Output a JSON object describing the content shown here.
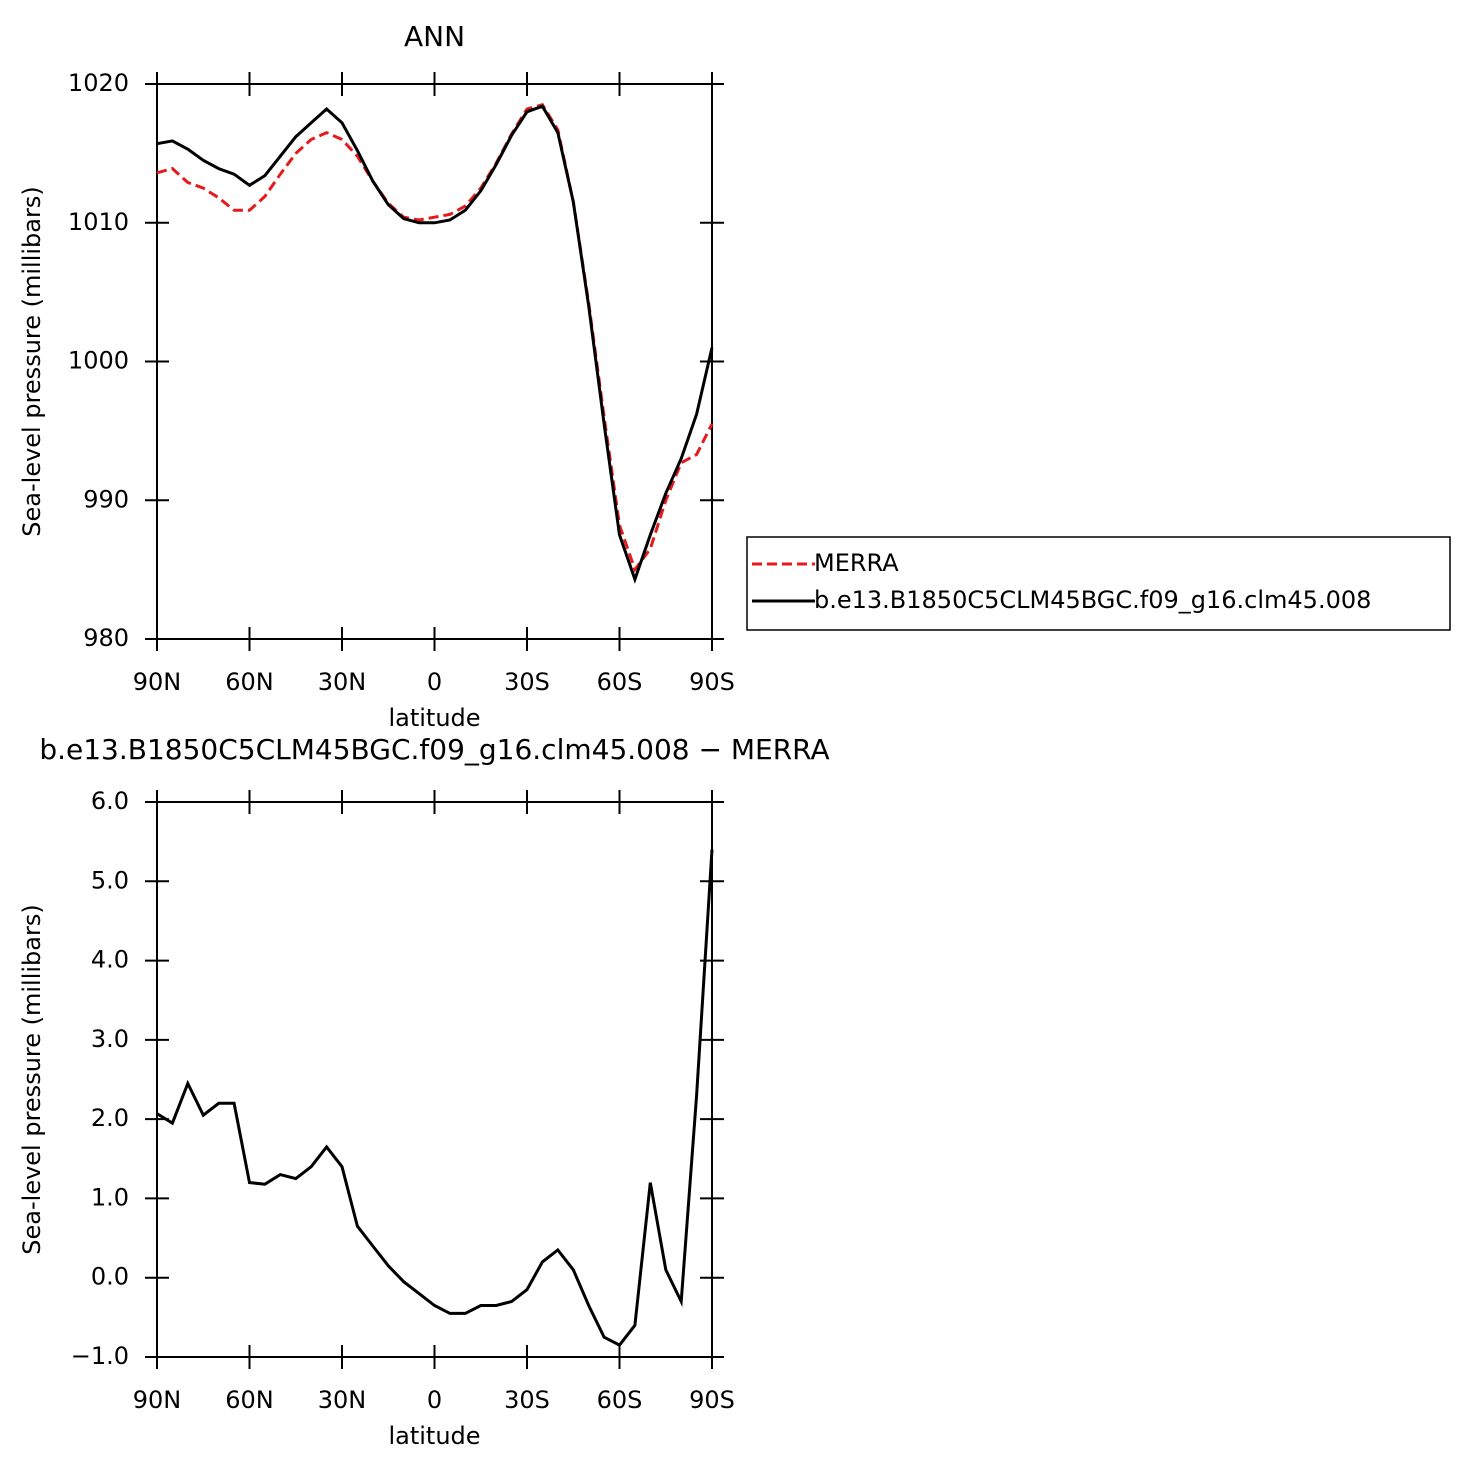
{
  "chart_data": [
    {
      "type": "line",
      "title": "ANN",
      "xlabel": "latitude",
      "ylabel": "Sea-level pressure (millibars)",
      "x": [
        90,
        85,
        80,
        75,
        70,
        65,
        60,
        55,
        50,
        45,
        40,
        35,
        30,
        25,
        20,
        15,
        10,
        5,
        0,
        -5,
        -10,
        -15,
        -20,
        -25,
        -30,
        -35,
        -40,
        -45,
        -50,
        -55,
        -60,
        -65,
        -70,
        -75,
        -80,
        -85,
        -90
      ],
      "series": [
        {
          "name": "MERRA",
          "color": "#e41a1c",
          "dashed": true,
          "values": [
            1013.6,
            1013.9,
            1012.9,
            1012.5,
            1011.8,
            1010.9,
            1010.9,
            1011.9,
            1013.5,
            1015.0,
            1016.0,
            1016.5,
            1016.0,
            1014.8,
            1013.0,
            1011.4,
            1010.4,
            1010.2,
            1010.4,
            1010.6,
            1011.2,
            1012.5,
            1014.3,
            1016.4,
            1018.2,
            1018.5,
            1016.7,
            1011.5,
            1004.2,
            996.0,
            988.2,
            985.0,
            986.5,
            990.0,
            992.7,
            993.3,
            995.5
          ]
        },
        {
          "name": "b.e13.B1850C5CLM45BGC.f09_g16.clm45.008",
          "color": "#000000",
          "dashed": false,
          "values": [
            1015.7,
            1015.9,
            1015.3,
            1014.5,
            1013.9,
            1013.5,
            1012.7,
            1013.4,
            1014.8,
            1016.2,
            1017.2,
            1018.2,
            1017.2,
            1015.2,
            1013.0,
            1011.3,
            1010.3,
            1010.0,
            1010.0,
            1010.2,
            1010.9,
            1012.3,
            1014.2,
            1016.3,
            1018.0,
            1018.4,
            1016.5,
            1011.5,
            1004.0,
            995.5,
            987.5,
            984.3,
            987.5,
            990.5,
            993.0,
            996.2,
            1001.0
          ]
        }
      ],
      "xlim": [
        90,
        -90
      ],
      "xticks": [
        {
          "value": 90,
          "label": "90N"
        },
        {
          "value": 60,
          "label": "60N"
        },
        {
          "value": 30,
          "label": "30N"
        },
        0,
        {
          "value": -30,
          "label": "30S"
        },
        {
          "value": -60,
          "label": "60S"
        },
        {
          "value": -90,
          "label": "90S"
        }
      ],
      "ylim": [
        980,
        1020
      ],
      "yticks": [
        980,
        990,
        1000,
        1010,
        1020
      ],
      "legend": "right"
    },
    {
      "type": "line",
      "title": "b.e13.B1850C5CLM45BGC.f09_g16.clm45.008 − MERRA",
      "xlabel": "latitude",
      "ylabel": "Sea-level pressure (millibars)",
      "x": [
        90,
        85,
        80,
        75,
        70,
        65,
        60,
        55,
        50,
        45,
        40,
        35,
        30,
        25,
        20,
        15,
        10,
        5,
        0,
        -5,
        -10,
        -15,
        -20,
        -25,
        -30,
        -35,
        -40,
        -45,
        -50,
        -55,
        -60,
        -65,
        -70,
        -75,
        -80,
        -85,
        -90
      ],
      "series": [
        {
          "color": "#000000",
          "dashed": false,
          "values": [
            2.07,
            1.95,
            2.45,
            2.05,
            2.2,
            2.2,
            1.2,
            1.18,
            1.3,
            1.25,
            1.4,
            1.65,
            1.4,
            0.65,
            0.4,
            0.15,
            -0.05,
            -0.2,
            -0.35,
            -0.45,
            -0.45,
            -0.35,
            -0.35,
            -0.3,
            -0.15,
            0.2,
            0.35,
            0.1,
            -0.35,
            -0.75,
            -0.85,
            -0.6,
            1.2,
            0.1,
            -0.3,
            2.3,
            5.4
          ]
        }
      ],
      "xlim": [
        90,
        -90
      ],
      "xticks": [
        {
          "value": 90,
          "label": "90N"
        },
        {
          "value": 60,
          "label": "60N"
        },
        {
          "value": 30,
          "label": "30N"
        },
        0,
        {
          "value": -30,
          "label": "30S"
        },
        {
          "value": -60,
          "label": "60S"
        },
        {
          "value": -90,
          "label": "90S"
        }
      ],
      "ylim": [
        -1,
        6
      ],
      "yticks": [
        {
          "value": -1,
          "label": "−1.0"
        },
        {
          "value": 0,
          "label": "0.0"
        },
        {
          "value": 1,
          "label": "1.0"
        },
        {
          "value": 2,
          "label": "2.0"
        },
        {
          "value": 3,
          "label": "3.0"
        },
        {
          "value": 4,
          "label": "4.0"
        },
        {
          "value": 5,
          "label": "5.0"
        },
        {
          "value": 6,
          "label": "6.0"
        }
      ]
    }
  ]
}
